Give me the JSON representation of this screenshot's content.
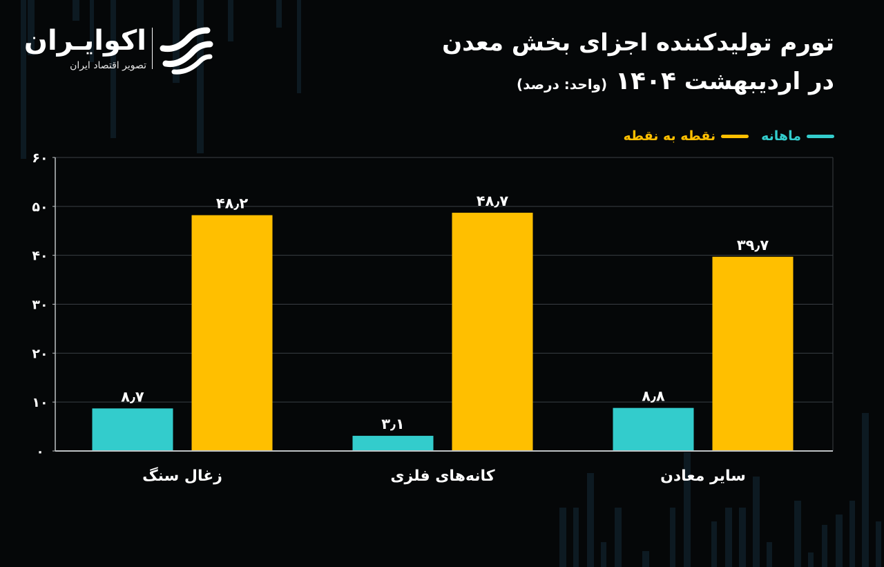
{
  "header": {
    "title_line1": "تورم تولیدکننده اجزای بخش معدن",
    "title_line2_prefix": "در اردیبهشت",
    "title_year": "۱۴۰۴",
    "title_unit": "(واحد: درصد)"
  },
  "logo": {
    "name": "اکوایـران",
    "subtitle": "تصویر اقتصاد ایران"
  },
  "colors": {
    "monthly": "#33cccc",
    "point_to_point": "#ffbf00",
    "background": "#050708",
    "grid": "#3a3f44",
    "axis": "#bfc3c6"
  },
  "legend": [
    {
      "label": "ماهانه",
      "color_key": "monthly"
    },
    {
      "label": "نقطه به نقطه",
      "color_key": "point_to_point"
    }
  ],
  "chart_data": {
    "type": "bar",
    "title": "تورم تولیدکننده اجزای بخش معدن در اردیبهشت ۱۴۰۴",
    "ylabel": "درصد",
    "ylim": [
      0,
      60
    ],
    "yticks": [
      0,
      10,
      20,
      30,
      40,
      50,
      60
    ],
    "ytick_labels": [
      "۰",
      "۱۰",
      "۲۰",
      "۳۰",
      "۴۰",
      "۵۰",
      "۶۰"
    ],
    "categories": [
      "زغال سنگ",
      "کانه‌های فلزی",
      "سایر معادن"
    ],
    "series": [
      {
        "name": "ماهانه",
        "color_key": "monthly",
        "values": [
          8.7,
          3.1,
          8.8
        ],
        "labels": [
          "۸٫۷",
          "۳٫۱",
          "۸٫۸"
        ]
      },
      {
        "name": "نقطه به نقطه",
        "color_key": "point_to_point",
        "values": [
          48.2,
          48.7,
          39.7
        ],
        "labels": [
          "۴۸٫۲",
          "۴۸٫۷",
          "۳۹٫۷"
        ]
      }
    ],
    "grid": true
  }
}
